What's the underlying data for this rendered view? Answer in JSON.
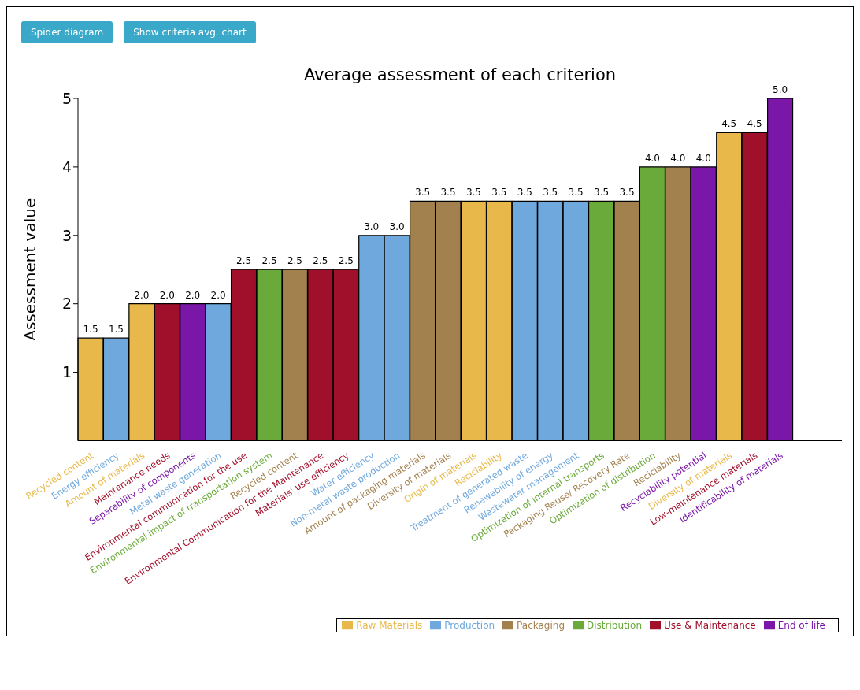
{
  "chart_data": {
    "type": "bar",
    "title": "Average assessment of each criterion",
    "ylabel": "Assessment value",
    "annotations": [
      "Spider diagram",
      "Show criteria avg. chart"
    ],
    "categories": [
      "Recycled content",
      "Energy efficiency",
      "Amount of materials",
      "Maintenance needs",
      "Separability of components",
      "Metal waste generation",
      "Environmental communication for the use",
      "Environmental impact of transportation system",
      "Recycled content",
      "Environmental Communication for the Maintenance",
      "Materials' use efficiency",
      "Water efficiency",
      "Non-metal waste production",
      "Amount of packaging materials",
      "Diversity of materials",
      "Origin of materials",
      "Reciclability",
      "Treatment of generated waste",
      "Renewability of energy",
      "Wastewater management",
      "Optimization of internal transports",
      "Packaging Reuse/ Recovery Rate",
      "Optimization of distribution",
      "Reciclability",
      "Recyclability potential",
      "Diversity of materials",
      "Low-maintenance materials",
      "Identificability of materials"
    ],
    "stacked": true,
    "series": [
      {
        "name": "Raw Materials",
        "color": "#e8b84a",
        "values": [
          1.5,
          null,
          2,
          null,
          null,
          null,
          null,
          null,
          null,
          null,
          null,
          null,
          null,
          null,
          null,
          3.5,
          3.5,
          null,
          null,
          null,
          null,
          null,
          null,
          null,
          null,
          4.5,
          null,
          null
        ],
        "value_labels": [
          "1.5",
          null,
          "2.0",
          null,
          null,
          null,
          null,
          null,
          null,
          null,
          null,
          null,
          null,
          null,
          null,
          "3.5",
          "3.5",
          null,
          null,
          null,
          null,
          null,
          null,
          null,
          null,
          "4.5",
          null,
          null
        ]
      },
      {
        "name": "Production",
        "color": "#6fa8dc",
        "values": [
          null,
          1.5,
          null,
          null,
          null,
          2,
          null,
          null,
          null,
          null,
          null,
          3,
          3,
          null,
          null,
          null,
          null,
          3.5,
          3.5,
          3.5,
          null,
          null,
          null,
          null,
          null,
          null,
          null,
          null
        ],
        "value_labels": [
          null,
          "1.5",
          null,
          null,
          null,
          "2.0",
          null,
          null,
          null,
          null,
          null,
          "3.0",
          "3.0",
          null,
          null,
          null,
          null,
          "3.5",
          "3.5",
          "3.5",
          null,
          null,
          null,
          null,
          null,
          null,
          null,
          null
        ]
      },
      {
        "name": "Packaging",
        "color": "#a3814f",
        "values": [
          null,
          null,
          null,
          null,
          null,
          null,
          null,
          null,
          2.5,
          null,
          null,
          null,
          null,
          3.5,
          3.5,
          null,
          null,
          null,
          null,
          null,
          null,
          3.5,
          null,
          4,
          null,
          null,
          null,
          null
        ],
        "value_labels": [
          null,
          null,
          null,
          null,
          null,
          null,
          null,
          null,
          "2.5",
          null,
          null,
          null,
          null,
          "3.5",
          "3.5",
          null,
          null,
          null,
          null,
          null,
          null,
          "3.5",
          null,
          "4.0",
          null,
          null,
          null,
          null
        ]
      },
      {
        "name": "Distribution",
        "color": "#6aaa3a",
        "values": [
          null,
          null,
          null,
          null,
          null,
          null,
          null,
          2.5,
          null,
          null,
          null,
          null,
          null,
          null,
          null,
          null,
          null,
          null,
          null,
          null,
          3.5,
          null,
          4,
          null,
          null,
          null,
          null,
          null
        ],
        "value_labels": [
          null,
          null,
          null,
          null,
          null,
          null,
          null,
          "2.5",
          null,
          null,
          null,
          null,
          null,
          null,
          null,
          null,
          null,
          null,
          null,
          null,
          "3.5",
          null,
          "4.0",
          null,
          null,
          null,
          null,
          null
        ]
      },
      {
        "name": "Use & Maintenance",
        "color": "#a0102a",
        "values": [
          null,
          null,
          null,
          2,
          null,
          null,
          2.5,
          null,
          null,
          2.5,
          2.5,
          null,
          null,
          null,
          null,
          null,
          null,
          null,
          null,
          null,
          null,
          null,
          null,
          null,
          null,
          null,
          4.5,
          null
        ],
        "value_labels": [
          null,
          null,
          null,
          "2.0",
          null,
          null,
          "2.5",
          null,
          null,
          "2.5",
          "2.5",
          null,
          null,
          null,
          null,
          null,
          null,
          null,
          null,
          null,
          null,
          null,
          null,
          null,
          null,
          null,
          "4.5",
          null
        ]
      },
      {
        "name": "End of life",
        "color": "#7a17a8",
        "values": [
          null,
          null,
          null,
          null,
          2,
          null,
          null,
          null,
          null,
          null,
          null,
          null,
          null,
          null,
          null,
          null,
          null,
          null,
          null,
          null,
          null,
          null,
          null,
          null,
          4,
          null,
          null,
          5
        ],
        "value_labels": [
          null,
          null,
          null,
          null,
          "2.0",
          null,
          null,
          null,
          null,
          null,
          null,
          null,
          null,
          null,
          null,
          null,
          null,
          null,
          null,
          null,
          null,
          null,
          null,
          null,
          "4.0",
          null,
          null,
          "5.0"
        ]
      }
    ],
    "ylim": [
      0,
      5
    ],
    "yticks": [
      1,
      2,
      3,
      4,
      5
    ],
    "grid": false,
    "legend": "bottom right"
  }
}
